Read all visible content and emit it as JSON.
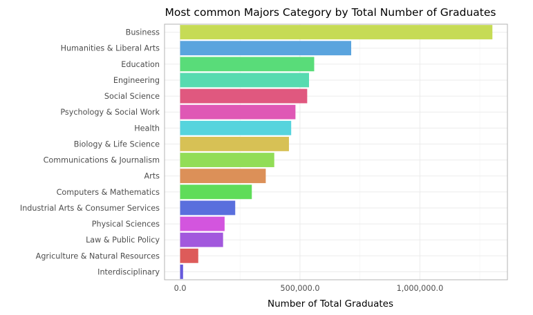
{
  "chart_data": {
    "type": "bar",
    "orientation": "horizontal",
    "title": "Most common Majors Category by Total Number of Graduates",
    "xlabel": "Number of Total Graduates",
    "ylabel": "",
    "categories": [
      "Business",
      "Humanities & Liberal Arts",
      "Education",
      "Engineering",
      "Social Science",
      "Psychology & Social Work",
      "Health",
      "Biology & Life Science",
      "Communications & Journalism",
      "Arts",
      "Computers & Mathematics",
      "Industrial Arts & Consumer Services",
      "Physical Sciences",
      "Law & Public Policy",
      "Agriculture & Natural Resources",
      "Interdisciplinary"
    ],
    "values": [
      1302376,
      713468,
      559129,
      537583,
      529966,
      481007,
      463230,
      453862,
      392601,
      357130,
      299008,
      229792,
      185479,
      179107,
      75620,
      12296
    ],
    "colors": [
      "#c6db55",
      "#5aa4de",
      "#59dc79",
      "#57dbb0",
      "#e0587f",
      "#df58b5",
      "#56d4dd",
      "#d7c155",
      "#92dd57",
      "#dc9058",
      "#5fdc59",
      "#5a6fdd",
      "#d355de",
      "#a258dd",
      "#dd5b5a",
      "#6659dc"
    ],
    "xlim": [
      -65000,
      1365000
    ],
    "x_ticks": [
      0,
      500000,
      1000000
    ],
    "x_tick_labels": [
      "0.0",
      "500,000.0",
      "1,000,000.0"
    ],
    "grid": true,
    "legend": "none"
  }
}
